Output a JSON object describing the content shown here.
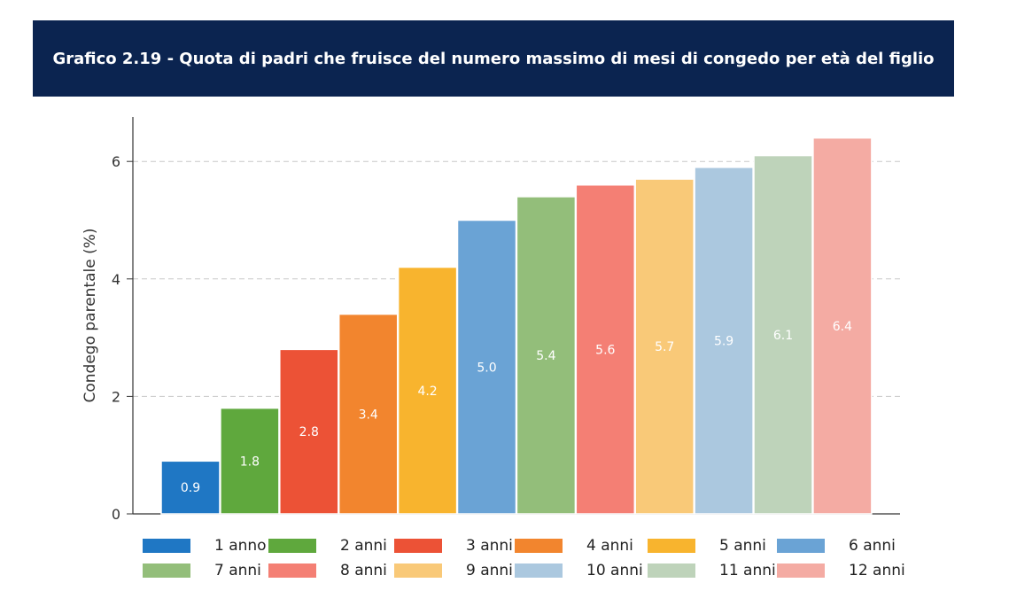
{
  "header": {
    "title": "Grafico 2.19 - Quota di padri che fruisce del numero massimo di mesi di congedo per età del figlio"
  },
  "chart_data": {
    "type": "bar",
    "title": "Grafico 2.19 - Quota di padri che fruisce del numero massimo di mesi di congedo per età del figlio",
    "xlabel": "",
    "ylabel": "Condego parentale (%)",
    "ylim": [
      0,
      6.7
    ],
    "yticks": [
      "0",
      "2",
      "4",
      "6"
    ],
    "ytick_values": [
      0,
      2,
      4,
      6
    ],
    "grid": true,
    "legend_position": "bottom",
    "categories": [
      "1 anno",
      "2 anni",
      "3 anni",
      "4 anni",
      "5 anni",
      "6 anni",
      "7 anni",
      "8 anni",
      "9 anni",
      "10 anni",
      "11 anni",
      "12 anni"
    ],
    "values": [
      0.9,
      1.8,
      2.8,
      3.4,
      4.2,
      5.0,
      5.4,
      5.6,
      5.7,
      5.9,
      6.1,
      6.4
    ],
    "value_labels": [
      "0.9",
      "1.8",
      "2.8",
      "3.4",
      "4.2",
      "5.0",
      "5.4",
      "5.6",
      "5.7",
      "5.9",
      "6.1",
      "6.4"
    ],
    "colors": [
      "#1f77c4",
      "#5fa83d",
      "#ec5236",
      "#f2852e",
      "#f8b42e",
      "#6aa3d5",
      "#93be7a",
      "#f47f74",
      "#f9c978",
      "#abc8df",
      "#bed3ba",
      "#f4aba3"
    ]
  }
}
